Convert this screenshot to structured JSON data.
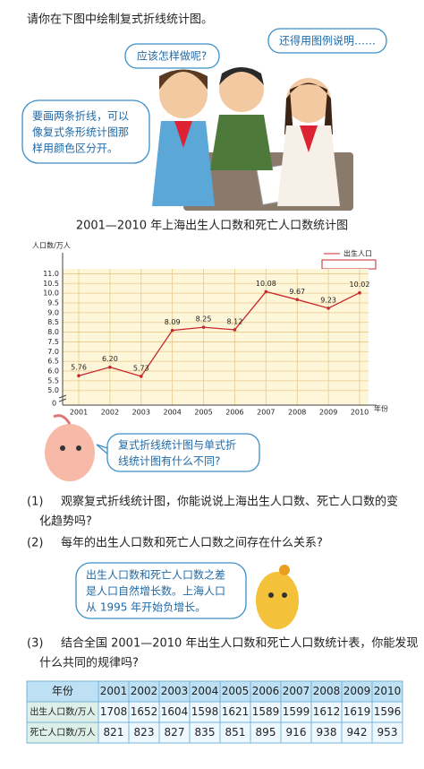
{
  "instruction": "请你在下图中绘制复式折线统计图。",
  "bubbles": {
    "middle": "应该怎样做呢?",
    "right": "还得用图例说明……",
    "left": [
      "要画两条折线，可以",
      "像复式条形统计图那",
      "样用颜色区分开。"
    ]
  },
  "chart_data": {
    "type": "line",
    "title": "2001—2010 年上海出生人口数和死亡人口数统计图",
    "y_label": "人口数/万人",
    "x_label": "年份",
    "origin_label": "0",
    "categories": [
      "2001",
      "2002",
      "2003",
      "2004",
      "2005",
      "2006",
      "2007",
      "2008",
      "2009",
      "2010"
    ],
    "series": [
      {
        "name": "出生人口",
        "color": "#c8282d",
        "values": [
          5.76,
          6.2,
          5.73,
          8.09,
          8.25,
          8.12,
          10.08,
          9.67,
          9.23,
          10.02
        ],
        "value_labels": [
          "5.76",
          "6.20",
          "5.73",
          "8.09",
          "8.25",
          "8.12",
          "10.08",
          "9.67",
          "9.23",
          "10.02"
        ]
      }
    ],
    "ylim": [
      4.25,
      11.25
    ],
    "yticks": [
      {
        "value": 5,
        "label": "5.0"
      },
      5.5,
      {
        "value": 6,
        "label": "6.0"
      },
      6.5,
      {
        "value": 7,
        "label": "7.0"
      },
      7.5,
      {
        "value": 8,
        "label": "8.0"
      },
      8.5,
      {
        "value": 9,
        "label": "9.0"
      },
      9.5,
      {
        "value": 10,
        "label": "10.0"
      },
      10.5,
      {
        "value": 11,
        "label": "11.0"
      }
    ],
    "grid": true
  },
  "mascot_bubble_1": [
    "复式折线统计图与单式折",
    "线统计图有什么不同?"
  ],
  "questions": [
    {
      "number": "(1)",
      "lines": [
        "观察复式折线统计图，你能说说上海出生人口数、死亡人口数的变",
        "化趋势吗?"
      ]
    },
    {
      "number": "(2)",
      "lines": [
        "每年的出生人口数和死亡人口数之间存在什么关系?"
      ]
    },
    {
      "number": "(3)",
      "lines": [
        "结合全国 2001—2010 年出生人口数和死亡人口数统计表，你能发现",
        "什么共同的规律吗?"
      ]
    }
  ],
  "mascot_bubble_2": [
    "出生人口数和死亡人口数之差",
    "是人口自然增长数。上海人口",
    "从 1995 年开始负增长。"
  ],
  "table": {
    "header": [
      "年份",
      "2001",
      "2002",
      "2003",
      "2004",
      "2005",
      "2006",
      "2007",
      "2008",
      "2009",
      "2010"
    ],
    "rows": [
      [
        "出生人口数/万人",
        "1708",
        "1652",
        "1604",
        "1598",
        "1621",
        "1589",
        "1599",
        "1612",
        "1619",
        "1596"
      ],
      [
        "死亡人口数/万人",
        "821",
        "823",
        "827",
        "835",
        "851",
        "895",
        "916",
        "938",
        "942",
        "953"
      ]
    ]
  }
}
